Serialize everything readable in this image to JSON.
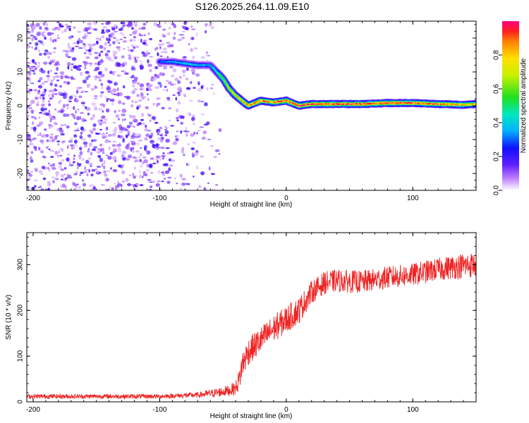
{
  "title": "S126.2025.264.11.09.E10",
  "chart_data": [
    {
      "type": "heatmap",
      "title": "",
      "xlabel": "Height of straight line (km)",
      "ylabel": "Frequency (Hz)",
      "xlim": [
        -205,
        150
      ],
      "ylim": [
        -25,
        25
      ],
      "x_ticks": [
        -200,
        -100,
        0,
        100
      ],
      "y_ticks": [
        -20,
        -10,
        0,
        10,
        20
      ],
      "x_tick_labels": [
        "-200",
        "-100",
        "0",
        "100"
      ],
      "y_tick_labels": [
        "-20",
        "-10",
        "0",
        "10",
        "20"
      ],
      "colorbar": {
        "label": "Normalized spectral amplitude",
        "range": [
          0,
          1
        ],
        "ticks": [
          0,
          0.2,
          0.4,
          0.6,
          0.8
        ],
        "tick_labels": [
          "0.0",
          "0.2",
          "0.4",
          "0.6",
          "0.8"
        ],
        "colormap": "rainbow"
      },
      "noise_region": {
        "x_from": -205,
        "x_to": -55,
        "amplitude": 0.2
      },
      "ridge": {
        "x": [
          -100,
          -90,
          -80,
          -70,
          -60,
          -55,
          -50,
          -45,
          -40,
          -35,
          -30,
          -20,
          -10,
          0,
          10,
          20,
          40,
          60,
          80,
          100,
          120,
          140,
          150
        ],
        "frequency": [
          13,
          13,
          12.5,
          12,
          12,
          10,
          8,
          5,
          3,
          1.5,
          0,
          1.5,
          1,
          1.5,
          0,
          0.5,
          0.5,
          0.5,
          0.8,
          0.8,
          0.5,
          0.3,
          0.5
        ],
        "amplitude": [
          0.3,
          0.35,
          0.4,
          0.4,
          0.35,
          0.5,
          0.6,
          0.7,
          0.75,
          0.8,
          0.85,
          0.9,
          0.9,
          0.95,
          0.95,
          0.95,
          0.95,
          0.95,
          0.95,
          0.95,
          0.9,
          0.85,
          0.8
        ]
      }
    },
    {
      "type": "line",
      "title": "",
      "xlabel": "Height of straight line (km)",
      "ylabel": "SNR (10 * v/v)",
      "xlim": [
        -205,
        150
      ],
      "ylim": [
        0,
        370
      ],
      "x_ticks": [
        -200,
        -100,
        0,
        100
      ],
      "y_ticks": [
        0,
        100,
        200,
        300
      ],
      "x_tick_labels": [
        "-200",
        "-100",
        "0",
        "100"
      ],
      "y_tick_labels": [
        "0",
        "100",
        "200",
        "300"
      ],
      "series": [
        {
          "name": "SNR",
          "color": "#ee2222",
          "x": [
            -205,
            -150,
            -100,
            -70,
            -55,
            -45,
            -40,
            -37,
            -35,
            -30,
            -20,
            -10,
            0,
            10,
            20,
            30,
            40,
            60,
            80,
            100,
            120,
            140,
            150
          ],
          "values": [
            12,
            12,
            12,
            15,
            20,
            25,
            30,
            50,
            80,
            110,
            135,
            160,
            180,
            200,
            240,
            260,
            265,
            262,
            272,
            278,
            290,
            298,
            300
          ],
          "noise": [
            5,
            5,
            5,
            6,
            10,
            12,
            15,
            25,
            30,
            30,
            30,
            30,
            30,
            30,
            25,
            25,
            25,
            25,
            25,
            25,
            25,
            28,
            28
          ]
        }
      ]
    }
  ]
}
